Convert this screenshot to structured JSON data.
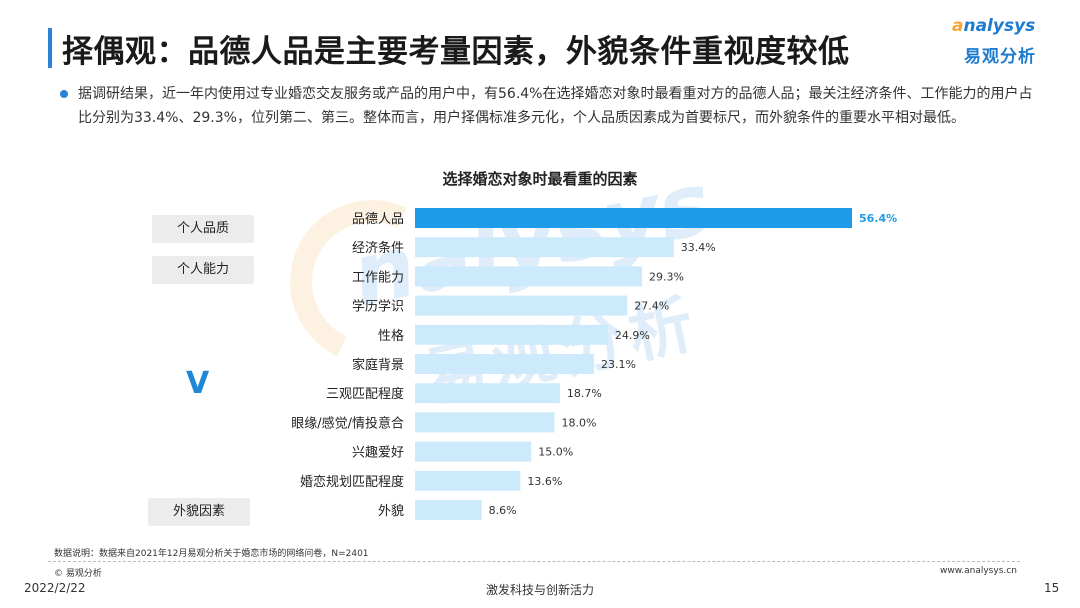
{
  "header": {
    "title": "择偶观：品德人品是主要考量因素，外貌条件重视度较低",
    "logo_en": "nalysys",
    "logo_cn": "易观分析"
  },
  "bullet": "据调研结果，近一年内使用过专业婚恋交友服务或产品的用户中，有56.4%在选择婚恋对象时最看重对方的品德人品；最关注经济条件、工作能力的用户占比分别为33.4%、29.3%，位列第二、第三。整体而言，用户择偶标准多元化，个人品质因素成为首要标尺，而外貌条件的重要水平相对最低。",
  "groups": [
    "个人品质",
    "个人能力",
    "外貌因素"
  ],
  "chevron": "V",
  "chart_data": {
    "type": "bar",
    "orientation": "horizontal",
    "title": "选择婚恋对象时最看重的因素",
    "categories": [
      "品德人品",
      "经济条件",
      "工作能力",
      "学历学识",
      "性格",
      "家庭背景",
      "三观匹配程度",
      "眼缘/感觉/情投意合",
      "兴趣爱好",
      "婚恋规划匹配程度",
      "外貌"
    ],
    "values": [
      56.4,
      33.4,
      29.3,
      27.4,
      24.9,
      23.1,
      18.7,
      18.0,
      15.0,
      13.6,
      8.6
    ],
    "value_labels": [
      "56.4%",
      "33.4%",
      "29.3%",
      "27.4%",
      "24.9%",
      "23.1%",
      "18.7%",
      "18.0%",
      "15.0%",
      "13.6%",
      "8.6%"
    ],
    "xlim": [
      0,
      56.4
    ],
    "highlight_color": "#1e9be9",
    "bar_color": "#cdeafc",
    "label_highlight_color": "#1e9be9",
    "grid": false
  },
  "footer": {
    "note": "数据说明：数据来自2021年12月易观分析关于婚恋市场的网络问卷，N=2401",
    "copyright": "© 易观分析",
    "website": "www.analysys.cn",
    "date": "2022/2/22",
    "slogan": "激发科技与创新活力",
    "page": "15"
  }
}
